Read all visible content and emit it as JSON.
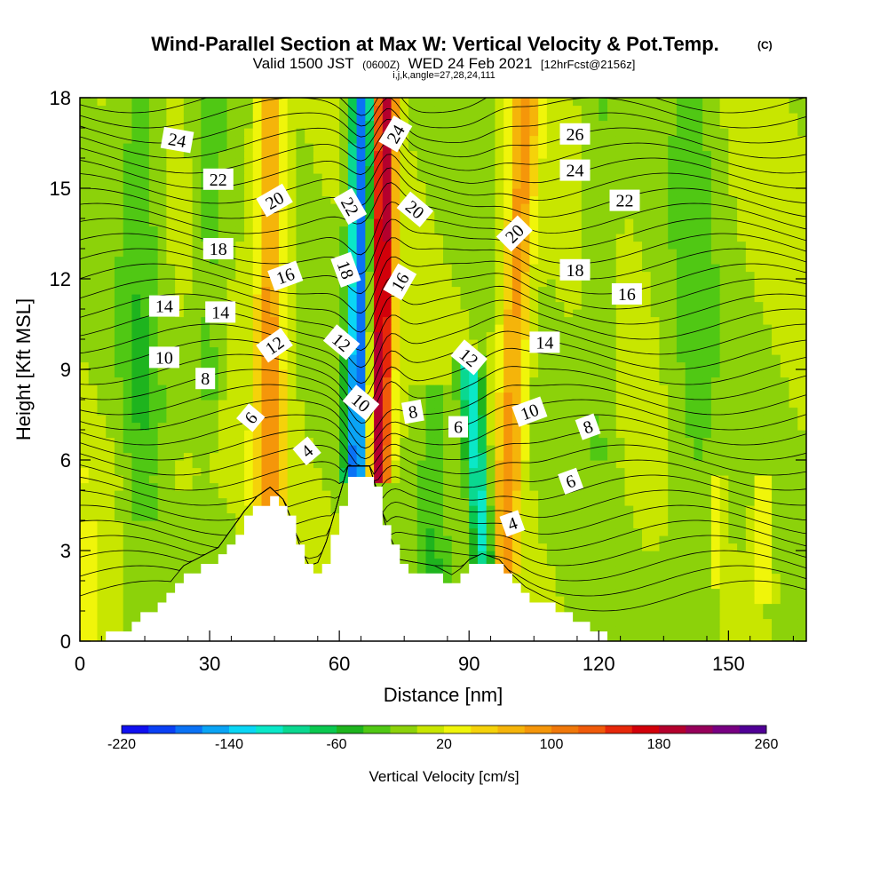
{
  "chart_data": {
    "type": "heatmap",
    "title": "Wind-Parallel Section at Max W: Vertical Velocity & Pot.Temp.",
    "title_mark": "(C)",
    "subtitle_parts": [
      "Valid 1500 JST",
      "(0600Z)",
      "WED 24 Feb 2021",
      "[12hrFcst@2156z]"
    ],
    "subtitle2": "i,j,k,angle=27,28,24,111",
    "xlabel": "Distance [nm]",
    "ylabel": "Height [Kft MSL]",
    "xlim": [
      0,
      168
    ],
    "ylim": [
      0,
      18
    ],
    "xticks": [
      0,
      30,
      60,
      90,
      120,
      150
    ],
    "yticks": [
      0,
      3,
      6,
      9,
      12,
      15,
      18
    ],
    "colorbar": {
      "label": "Vertical Velocity [cm/s]",
      "range": [
        -220,
        260
      ],
      "step": 20,
      "tick_labels": [
        -220,
        -140,
        -60,
        20,
        100,
        180,
        260
      ],
      "colors": [
        "#1010f0",
        "#0a40f5",
        "#0a72f5",
        "#0aa4f5",
        "#0ad6f5",
        "#0ae8c8",
        "#0ad890",
        "#0ac850",
        "#1eb41e",
        "#50c814",
        "#8cd20a",
        "#c8e600",
        "#f0f50a",
        "#f5d20a",
        "#f5b40a",
        "#f5960a",
        "#f0780a",
        "#f05a0a",
        "#e6280a",
        "#d2000a",
        "#b4002d",
        "#96005a",
        "#780082",
        "#500096"
      ]
    },
    "velocity_features": [
      {
        "x": 64,
        "y_bottom": 5.5,
        "y_top": 18,
        "drift": 1.5,
        "value": -180,
        "width": 5
      },
      {
        "x": 69,
        "y_bottom": 5.5,
        "y_top": 18,
        "drift": 1.5,
        "value": 200,
        "width": 5
      },
      {
        "x": 44,
        "y_bottom": 3,
        "y_top": 18,
        "drift": 0,
        "value": 90,
        "width": 6
      },
      {
        "x": 98,
        "y_bottom": 2.5,
        "y_top": 18,
        "drift": 5,
        "value": 90,
        "width": 6
      },
      {
        "x": 94,
        "y_bottom": 2,
        "y_top": 9,
        "drift": -4,
        "value": -120,
        "width": 5
      },
      {
        "x": 82,
        "y_bottom": 2,
        "y_top": 8,
        "drift": 0,
        "value": -40,
        "width": 7
      },
      {
        "x": 158,
        "y_bottom": 1.5,
        "y_top": 5,
        "drift": 0,
        "value": 40,
        "width": 4
      },
      {
        "x": 147,
        "y_bottom": 2,
        "y_top": 5,
        "drift": 0,
        "value": 40,
        "width": 3
      }
    ],
    "terrain": [
      [
        0,
        0
      ],
      [
        10,
        0.3
      ],
      [
        12,
        0.6
      ],
      [
        15,
        1
      ],
      [
        20,
        1.5
      ],
      [
        24,
        2.2
      ],
      [
        28,
        2.5
      ],
      [
        32,
        2.8
      ],
      [
        34,
        3.2
      ],
      [
        38,
        4
      ],
      [
        41,
        4.5
      ],
      [
        44,
        4.8
      ],
      [
        47,
        4.4
      ],
      [
        49,
        3.7
      ],
      [
        51,
        2.8
      ],
      [
        53,
        2.2
      ],
      [
        55,
        2.3
      ],
      [
        57,
        3
      ],
      [
        60,
        4.5
      ],
      [
        62,
        5.5
      ],
      [
        67,
        5.5
      ],
      [
        69,
        4.5
      ],
      [
        71,
        3.4
      ],
      [
        74,
        2.4
      ],
      [
        78,
        2.3
      ],
      [
        82,
        2.2
      ],
      [
        86,
        1.9
      ],
      [
        88,
        2.1
      ],
      [
        90,
        2.4
      ],
      [
        93,
        2.6
      ],
      [
        97,
        2.4
      ],
      [
        100,
        1.9
      ],
      [
        103,
        1.5
      ],
      [
        107,
        1.2
      ],
      [
        110,
        1
      ],
      [
        113,
        0.8
      ],
      [
        116,
        0.5
      ],
      [
        120,
        0.3
      ],
      [
        122,
        0
      ],
      [
        168,
        0
      ]
    ],
    "contour_labels": [
      {
        "text": "24",
        "x": 22.5,
        "y": 16.6,
        "rot": 10
      },
      {
        "text": "22",
        "x": 32,
        "y": 15.3,
        "rot": 0
      },
      {
        "text": "20",
        "x": 45,
        "y": 14.6,
        "rot": -30
      },
      {
        "text": "18",
        "x": 32,
        "y": 13.0,
        "rot": 0
      },
      {
        "text": "16",
        "x": 47.5,
        "y": 12.1,
        "rot": -20
      },
      {
        "text": "14",
        "x": 19.5,
        "y": 11.1,
        "rot": 0
      },
      {
        "text": "14",
        "x": 32.5,
        "y": 10.9,
        "rot": 0
      },
      {
        "text": "12",
        "x": 45,
        "y": 9.8,
        "rot": -35
      },
      {
        "text": "10",
        "x": 19.5,
        "y": 9.4,
        "rot": 0
      },
      {
        "text": "8",
        "x": 29,
        "y": 8.7,
        "rot": 0
      },
      {
        "text": "6",
        "x": 39.5,
        "y": 7.4,
        "rot": -50
      },
      {
        "text": "4",
        "x": 52.5,
        "y": 6.3,
        "rot": -40
      },
      {
        "text": "22",
        "x": 62.5,
        "y": 14.4,
        "rot": 60
      },
      {
        "text": "18",
        "x": 61.5,
        "y": 12.3,
        "rot": 70
      },
      {
        "text": "12",
        "x": 60.5,
        "y": 9.9,
        "rot": 40
      },
      {
        "text": "10",
        "x": 65,
        "y": 7.9,
        "rot": 40
      },
      {
        "text": "24",
        "x": 73,
        "y": 16.8,
        "rot": -60
      },
      {
        "text": "20",
        "x": 77.5,
        "y": 14.3,
        "rot": 40
      },
      {
        "text": "16",
        "x": 74,
        "y": 11.9,
        "rot": -60
      },
      {
        "text": "8",
        "x": 77,
        "y": 7.6,
        "rot": -10
      },
      {
        "text": "6",
        "x": 87.5,
        "y": 7.1,
        "rot": 0
      },
      {
        "text": "12",
        "x": 90,
        "y": 9.4,
        "rot": 40
      },
      {
        "text": "20",
        "x": 100.5,
        "y": 13.5,
        "rot": -45
      },
      {
        "text": "14",
        "x": 107.5,
        "y": 9.9,
        "rot": 0
      },
      {
        "text": "10",
        "x": 104,
        "y": 7.6,
        "rot": -20
      },
      {
        "text": "8",
        "x": 117.5,
        "y": 7.1,
        "rot": -20
      },
      {
        "text": "6",
        "x": 113.5,
        "y": 5.3,
        "rot": -20
      },
      {
        "text": "4",
        "x": 100,
        "y": 3.9,
        "rot": -20
      },
      {
        "text": "26",
        "x": 114.5,
        "y": 16.8,
        "rot": 0
      },
      {
        "text": "24",
        "x": 114.5,
        "y": 15.6,
        "rot": 0
      },
      {
        "text": "22",
        "x": 126,
        "y": 14.6,
        "rot": 0
      },
      {
        "text": "18",
        "x": 114.5,
        "y": 12.3,
        "rot": 0
      },
      {
        "text": "16",
        "x": 126.5,
        "y": 11.5,
        "rot": 0
      }
    ]
  }
}
